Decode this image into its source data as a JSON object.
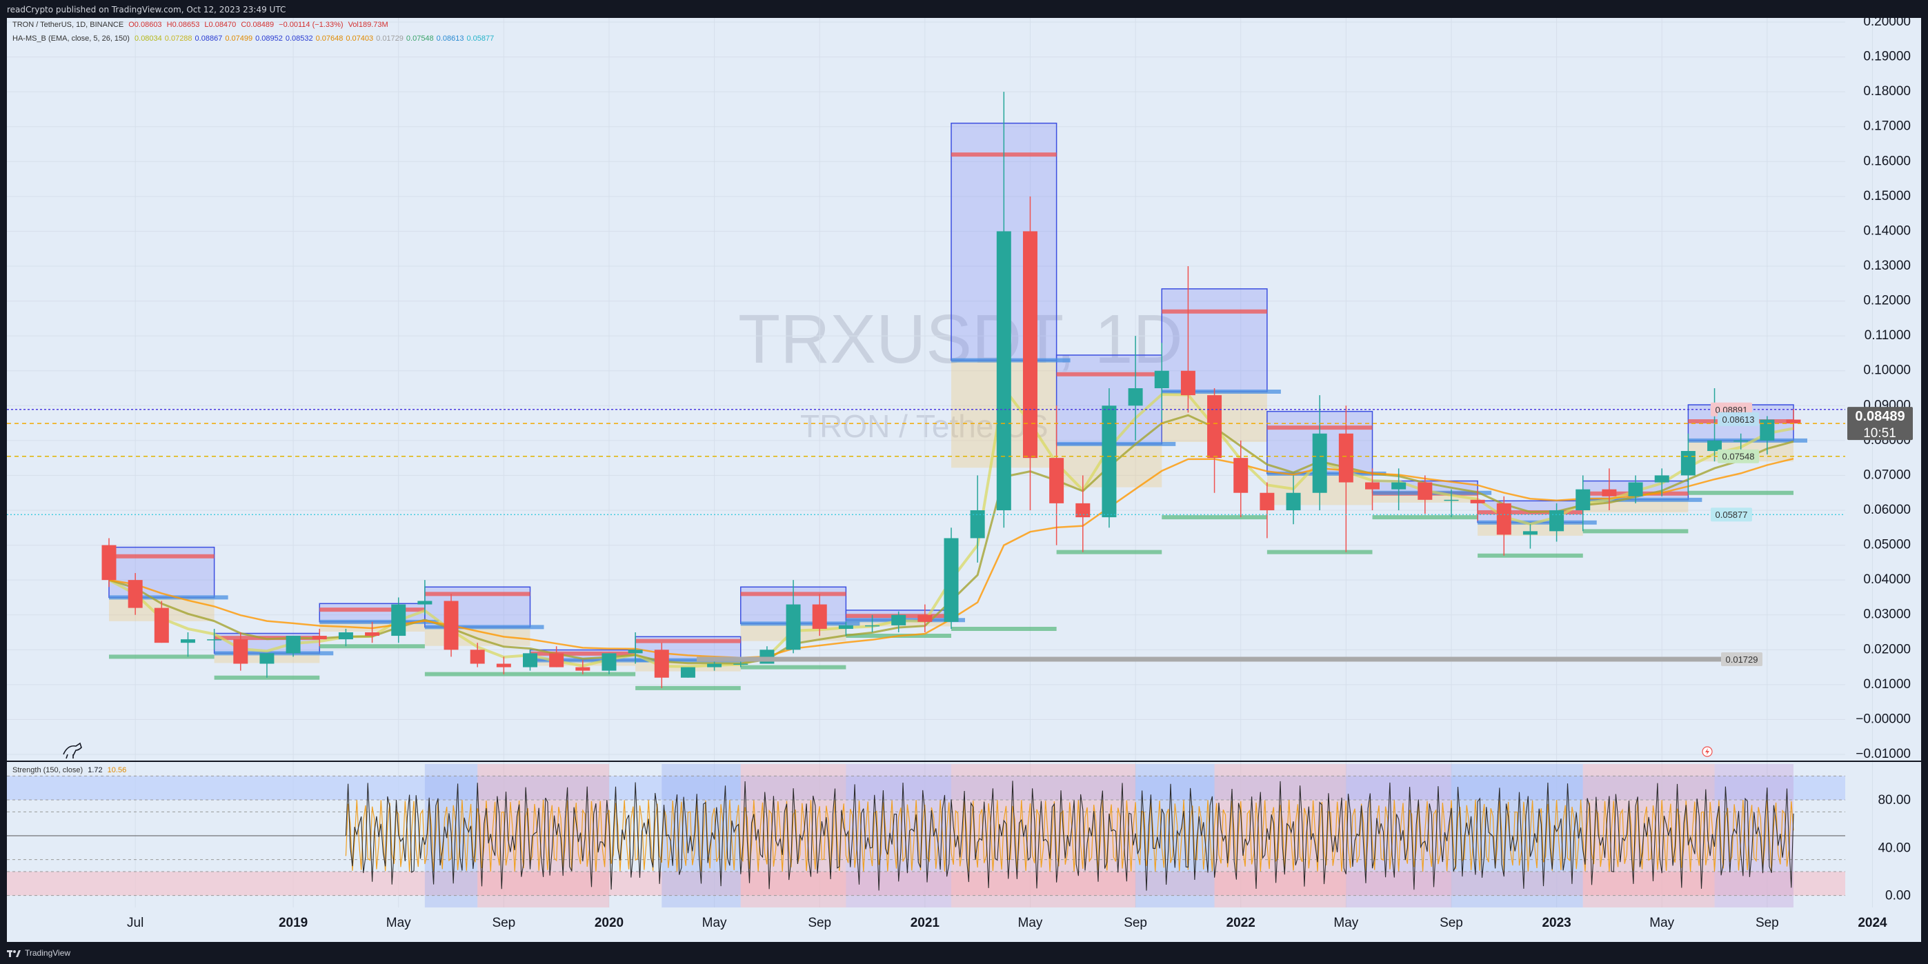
{
  "header": {
    "published": "readCrypto published on TradingView.com, Oct 12, 2023 23:49 UTC"
  },
  "footer": {
    "brand": "TradingView"
  },
  "legend": {
    "line1": {
      "symbol": "TRON / TetherUS, 1D, BINANCE",
      "o": "O0.08603",
      "h": "H0.08653",
      "l": "L0.08470",
      "c": "C0.08489",
      "chg": "−0.00114 (−1.33%)",
      "vol": "Vol189.73M"
    },
    "line2": {
      "name": "HA-MS_B (EMA, close, 5, 26, 150)",
      "values": [
        "0.08034",
        "0.07288",
        "0.08867",
        "0.07499",
        "0.08952",
        "0.08532",
        "0.07648",
        "0.07403",
        "0.01729",
        "0.07548",
        "0.08613",
        "0.05877"
      ],
      "colors": [
        "#b5b81a",
        "#c6b620",
        "#2a3bd1",
        "#e08a00",
        "#2a3bd1",
        "#2a3bd1",
        "#e08a00",
        "#e08a00",
        "#9e9e9e",
        "#3aa36a",
        "#2a8ad1",
        "#25b3c9"
      ]
    },
    "strength": {
      "name": "Strength (150, close)",
      "v1": "1.72",
      "v2": "10.56"
    }
  },
  "watermark": {
    "symbol": "TRXUSDT, 1D",
    "name": "TRON / TetherUS"
  },
  "price_labels": {
    "current": "0.08489",
    "countdown": "10:51",
    "l1": "0.08891",
    "l2": "0.08613",
    "l3": "0.07548",
    "l4": "0.05877",
    "l5": "0.01729"
  },
  "colors": {
    "bg": "#e3ecf7",
    "up": "#26a69a",
    "down": "#ef5350",
    "blue": "#3c4fe0",
    "red": "#ef5350",
    "orange": "#ff9800",
    "olive": "#a4a431",
    "yellow": "#d8d95a",
    "cyan": "#26c6da",
    "green": "#56b87a",
    "gray": "#a9a9a9"
  },
  "chart_data": [
    {
      "type": "candlestick",
      "title": "TRXUSDT, 1D",
      "ylim": [
        -0.01,
        0.2
      ],
      "y_ticks": [
        "0.20000",
        "0.19000",
        "0.18000",
        "0.17000",
        "0.16000",
        "0.15000",
        "0.14000",
        "0.13000",
        "0.12000",
        "0.11000",
        "0.10000",
        "0.09000",
        "0.08000",
        "0.07000",
        "0.06000",
        "0.05000",
        "0.04000",
        "0.03000",
        "0.02000",
        "0.01000",
        "−0.00000",
        "−0.01000"
      ],
      "x_ticks": [
        "Jul",
        "2019",
        "May",
        "Sep",
        "2020",
        "May",
        "Sep",
        "2021",
        "May",
        "Sep",
        "2022",
        "May",
        "Sep",
        "2023",
        "May",
        "Sep",
        "2024"
      ],
      "series": [
        {
          "name": "TRXUSDT",
          "x": [
            "2018-06",
            "2018-07",
            "2018-08",
            "2018-09",
            "2018-10",
            "2018-11",
            "2018-12",
            "2019-01",
            "2019-02",
            "2019-03",
            "2019-04",
            "2019-05",
            "2019-06",
            "2019-07",
            "2019-08",
            "2019-09",
            "2019-10",
            "2019-11",
            "2019-12",
            "2020-01",
            "2020-02",
            "2020-03",
            "2020-04",
            "2020-05",
            "2020-06",
            "2020-07",
            "2020-08",
            "2020-09",
            "2020-10",
            "2020-11",
            "2020-12",
            "2021-01",
            "2021-02",
            "2021-03",
            "2021-04",
            "2021-05",
            "2021-06",
            "2021-07",
            "2021-08",
            "2021-09",
            "2021-10",
            "2021-11",
            "2021-12",
            "2022-01",
            "2022-02",
            "2022-03",
            "2022-04",
            "2022-05",
            "2022-06",
            "2022-07",
            "2022-08",
            "2022-09",
            "2022-10",
            "2022-11",
            "2022-12",
            "2023-01",
            "2023-02",
            "2023-03",
            "2023-04",
            "2023-05",
            "2023-06",
            "2023-07",
            "2023-08",
            "2023-09",
            "2023-10"
          ],
          "open": [
            0.05,
            0.04,
            0.032,
            0.022,
            0.023,
            0.023,
            0.016,
            0.019,
            0.024,
            0.023,
            0.025,
            0.024,
            0.033,
            0.034,
            0.02,
            0.016,
            0.015,
            0.019,
            0.015,
            0.014,
            0.019,
            0.02,
            0.012,
            0.015,
            0.016,
            0.016,
            0.02,
            0.033,
            0.026,
            0.027,
            0.027,
            0.03,
            0.028,
            0.052,
            0.06,
            0.14,
            0.075,
            0.062,
            0.058,
            0.09,
            0.095,
            0.1,
            0.093,
            0.075,
            0.065,
            0.06,
            0.065,
            0.082,
            0.068,
            0.066,
            0.068,
            0.063,
            0.063,
            0.062,
            0.053,
            0.054,
            0.06,
            0.066,
            0.064,
            0.068,
            0.07,
            0.077,
            0.08,
            0.08,
            0.086
          ],
          "high": [
            0.052,
            0.042,
            0.034,
            0.025,
            0.026,
            0.025,
            0.019,
            0.024,
            0.026,
            0.026,
            0.028,
            0.035,
            0.04,
            0.036,
            0.022,
            0.018,
            0.02,
            0.021,
            0.017,
            0.019,
            0.025,
            0.022,
            0.015,
            0.018,
            0.018,
            0.021,
            0.04,
            0.036,
            0.028,
            0.03,
            0.031,
            0.033,
            0.055,
            0.07,
            0.18,
            0.15,
            0.09,
            0.07,
            0.095,
            0.11,
            0.108,
            0.13,
            0.095,
            0.08,
            0.068,
            0.07,
            0.093,
            0.09,
            0.072,
            0.072,
            0.07,
            0.066,
            0.066,
            0.064,
            0.056,
            0.062,
            0.07,
            0.072,
            0.07,
            0.072,
            0.082,
            0.095,
            0.082,
            0.087,
            0.089
          ],
          "low": [
            0.038,
            0.03,
            0.022,
            0.018,
            0.02,
            0.014,
            0.012,
            0.018,
            0.021,
            0.021,
            0.022,
            0.022,
            0.03,
            0.018,
            0.015,
            0.013,
            0.014,
            0.015,
            0.013,
            0.013,
            0.016,
            0.009,
            0.012,
            0.014,
            0.015,
            0.016,
            0.019,
            0.024,
            0.024,
            0.025,
            0.025,
            0.025,
            0.026,
            0.045,
            0.055,
            0.06,
            0.05,
            0.048,
            0.055,
            0.08,
            0.086,
            0.088,
            0.065,
            0.058,
            0.052,
            0.056,
            0.06,
            0.048,
            0.06,
            0.06,
            0.059,
            0.058,
            0.057,
            0.047,
            0.049,
            0.051,
            0.054,
            0.06,
            0.062,
            0.064,
            0.065,
            0.074,
            0.076,
            0.076,
            0.083
          ],
          "close": [
            0.04,
            0.032,
            0.022,
            0.023,
            0.023,
            0.016,
            0.019,
            0.024,
            0.023,
            0.025,
            0.024,
            0.033,
            0.034,
            0.02,
            0.016,
            0.015,
            0.019,
            0.015,
            0.014,
            0.019,
            0.02,
            0.012,
            0.015,
            0.016,
            0.016,
            0.02,
            0.033,
            0.026,
            0.027,
            0.027,
            0.03,
            0.028,
            0.052,
            0.06,
            0.14,
            0.075,
            0.062,
            0.058,
            0.09,
            0.095,
            0.1,
            0.093,
            0.075,
            0.065,
            0.06,
            0.065,
            0.082,
            0.068,
            0.066,
            0.068,
            0.063,
            0.063,
            0.062,
            0.053,
            0.054,
            0.06,
            0.066,
            0.064,
            0.068,
            0.07,
            0.077,
            0.08,
            0.08,
            0.086,
            0.08489
          ]
        }
      ],
      "lines": [
        {
          "name": "last",
          "value": 0.08489
        },
        {
          "name": "level-0.08891",
          "value": 0.08891
        },
        {
          "name": "level-0.08613",
          "value": 0.08613
        },
        {
          "name": "level-0.07548",
          "value": 0.07548
        },
        {
          "name": "level-0.05877",
          "value": 0.05877
        },
        {
          "name": "level-0.01729",
          "value": 0.01729
        }
      ]
    },
    {
      "type": "line",
      "title": "Strength (150, close)",
      "ylim": [
        -10,
        110
      ],
      "y_ticks": [
        "80.00",
        "40.00",
        "0.00"
      ],
      "levels": [
        0,
        20,
        30,
        50,
        70,
        80,
        100
      ]
    }
  ]
}
